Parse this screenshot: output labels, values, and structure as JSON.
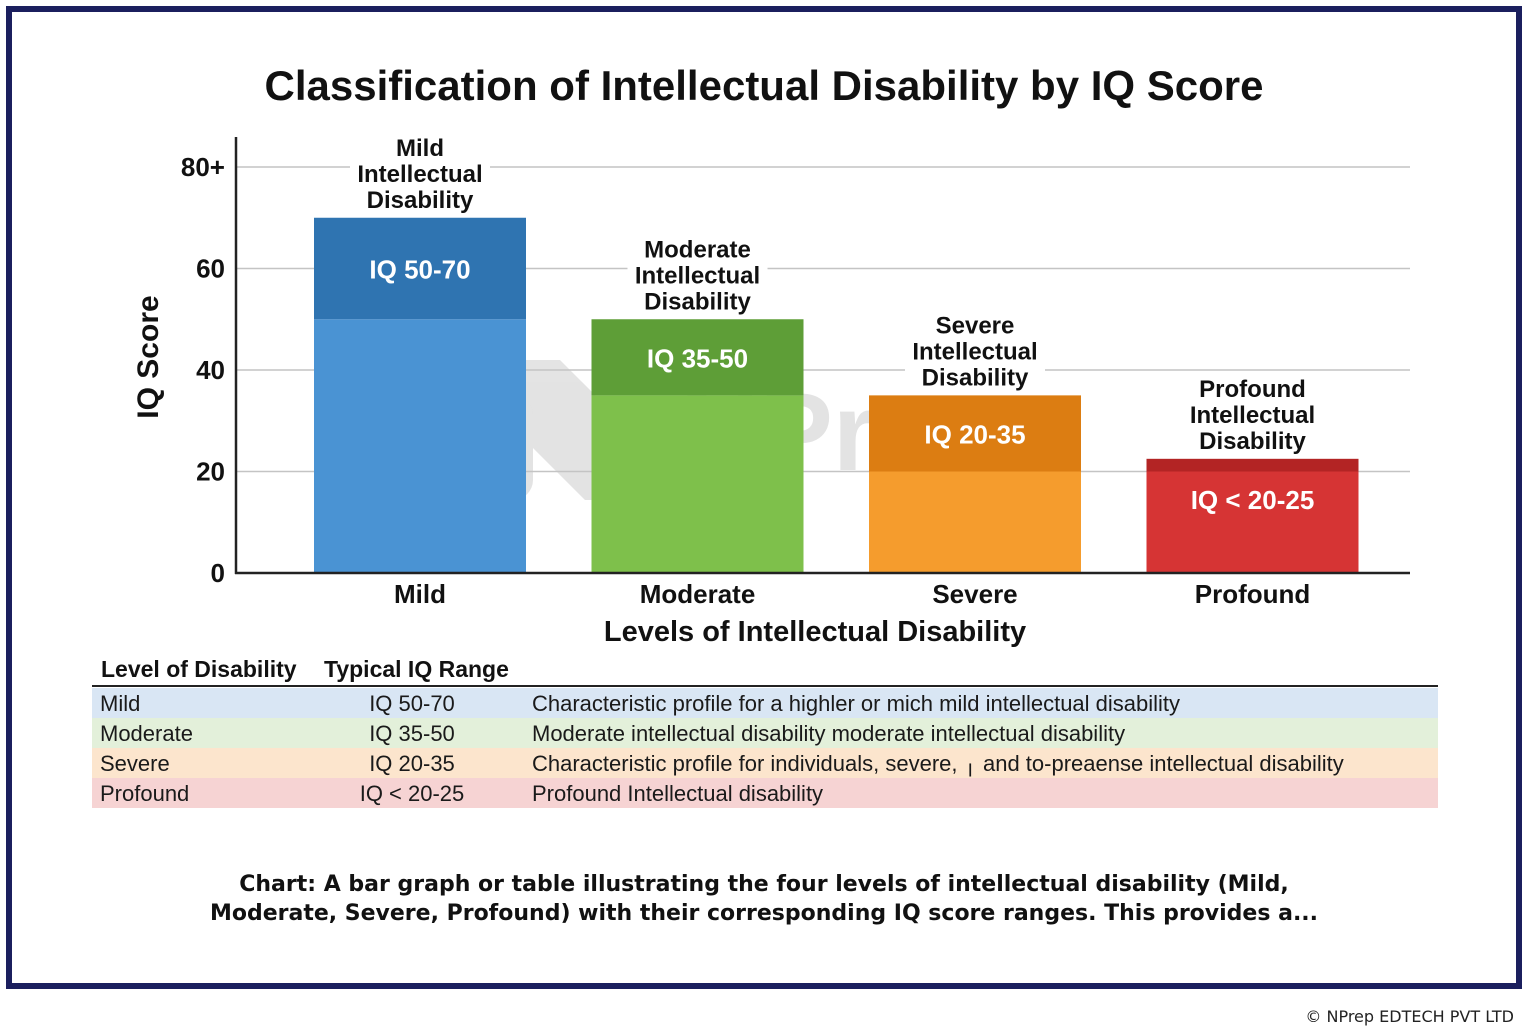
{
  "chart_data": {
    "type": "bar",
    "title": "Classification of Intellectual Disability by IQ Score",
    "xlabel": "Levels of Intellectual Disability",
    "ylabel": "IQ Score",
    "ylim": [
      0,
      80
    ],
    "y_ticks": [
      {
        "value": 0,
        "label": "0"
      },
      {
        "value": 20,
        "label": "20"
      },
      {
        "value": 40,
        "label": "40"
      },
      {
        "value": 60,
        "label": "60"
      },
      {
        "value": 80,
        "label": "80+"
      }
    ],
    "grid": true,
    "categories": [
      "Mild",
      "Moderate",
      "Severe",
      "Profound"
    ],
    "bars": [
      {
        "category": "Mild",
        "range": [
          50,
          70
        ],
        "range_label": "IQ 50-70",
        "top_label": [
          "Mild",
          "Intellectual",
          "Disability"
        ],
        "color_light": "#4a93d3",
        "color_dark": "#2f74b1"
      },
      {
        "category": "Moderate",
        "range": [
          35,
          50
        ],
        "range_label": "IQ 35-50",
        "top_label": [
          "Moderate",
          "Intellectual",
          "Disability"
        ],
        "color_light": "#7ec04b",
        "color_dark": "#5e9e37"
      },
      {
        "category": "Severe",
        "range": [
          20,
          35
        ],
        "range_label": "IQ 20-35",
        "top_label": [
          "Severe",
          "Intellectual",
          "Disability"
        ],
        "color_light": "#f59c2d",
        "color_dark": "#dc7d12"
      },
      {
        "category": "Profound",
        "range": [
          20,
          22.5
        ],
        "range_label": "IQ < 20-25",
        "top_label": [
          "Profound",
          "Intellectual",
          "Disability"
        ],
        "color_light": "#d63434",
        "color_dark": "#b32424"
      }
    ]
  },
  "watermark": "NPrep",
  "table": {
    "headers": [
      "Level of Disability",
      "Typical IQ Range"
    ],
    "rows": [
      {
        "level": "Mild",
        "range": "IQ 50-70",
        "description": "Characteristic profile for a highler or mich mild intellectual disability",
        "bg": "#d9e6f4"
      },
      {
        "level": "Moderate",
        "range": "IQ 35-50",
        "description": "Moderate intellectual disability moderate intellectual disability",
        "bg": "#e3f0da"
      },
      {
        "level": "Severe",
        "range": "IQ 20-35",
        "description": "Characteristic profile for individuals, severe, ╷ and to-preaense intellectual disability",
        "bg": "#fce5cd"
      },
      {
        "level": "Profound",
        "range": "IQ < 20-25",
        "description": "Profound Intellectual disability",
        "bg": "#f6d3d3"
      }
    ]
  },
  "caption": {
    "line1": "Chart: A bar graph or table illustrating the four levels of intellectual disability (Mild,",
    "line2": "Moderate, Severe, Profound) with their corresponding IQ score ranges. This provides a..."
  },
  "copyright": "© NPrep EDTECH PVT LTD"
}
